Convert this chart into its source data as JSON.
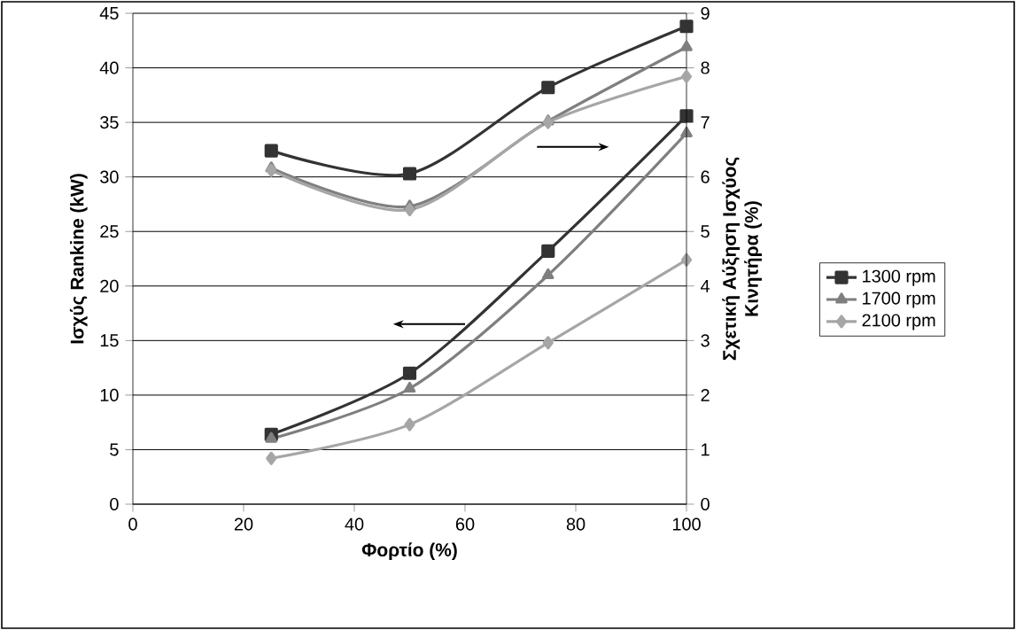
{
  "chart_data": {
    "type": "line",
    "xlabel": "Φορτίο (%)",
    "ylabel": "Ισχύς Rankine (kW)",
    "y2label": "Σχετική Αύξηση Ισχύος Κινητήρα (%)",
    "x": [
      25,
      50,
      75,
      100
    ],
    "series": [
      {
        "name": "1300 rpm",
        "color": "#333333",
        "marker": "square",
        "values": [
          6.4,
          12.0,
          23.2,
          35.6
        ]
      },
      {
        "name": "1700 rpm",
        "color": "#7f7f7f",
        "marker": "triangle",
        "values": [
          6.0,
          10.6,
          21.0,
          34.0
        ]
      },
      {
        "name": "2100 rpm",
        "color": "#a6a6a6",
        "marker": "diamond",
        "values": [
          4.2,
          7.3,
          14.8,
          22.4
        ]
      },
      {
        "color": "#333333",
        "marker": "square",
        "axis": "y2",
        "values": [
          6.48,
          6.06,
          7.64,
          8.76
        ]
      },
      {
        "color": "#7f7f7f",
        "marker": "triangle",
        "axis": "y2",
        "values": [
          6.16,
          5.46,
          7.02,
          8.38
        ]
      },
      {
        "color": "#a6a6a6",
        "marker": "diamond",
        "axis": "y2",
        "values": [
          6.12,
          5.4,
          7.0,
          7.84
        ]
      }
    ],
    "xlim": [
      0,
      100
    ],
    "xticks": [
      0,
      20,
      40,
      60,
      80,
      100
    ],
    "ylim": [
      0,
      45
    ],
    "yticks": [
      0,
      5,
      10,
      15,
      20,
      25,
      30,
      35,
      40,
      45
    ],
    "y2lim": [
      0,
      9
    ],
    "y2ticks": [
      0,
      1,
      2,
      3,
      4,
      5,
      6,
      7,
      8,
      9
    ],
    "grid": "y",
    "legend": "right",
    "line_style": "solid"
  }
}
